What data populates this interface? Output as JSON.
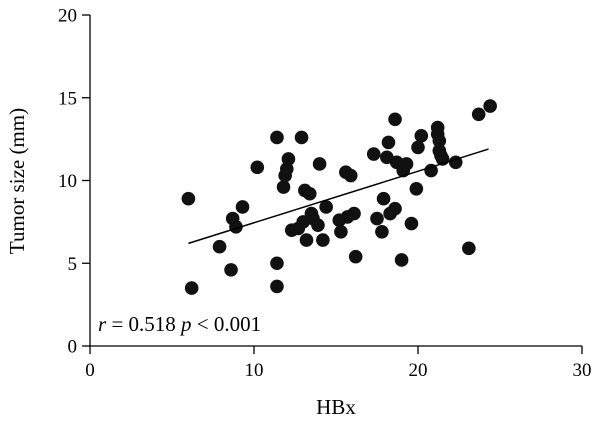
{
  "chart_data": {
    "type": "scatter",
    "xlabel": "HBx",
    "ylabel": "Tumor size (mm)",
    "xlim": [
      0,
      30
    ],
    "ylim": [
      0,
      20
    ],
    "x_ticks": [
      "0",
      "10",
      "20",
      "30"
    ],
    "y_ticks": [
      "0",
      "5",
      "10",
      "15",
      "20"
    ],
    "grid": false,
    "annotation": {
      "r_symbol": "r",
      "r_text": " = 0.518 ",
      "p_symbol": "p",
      "p_text": " < 0.001"
    },
    "trendline": {
      "x": [
        6.0,
        24.3
      ],
      "y": [
        6.2,
        11.9
      ]
    },
    "points": [
      {
        "x": 6.0,
        "y": 8.9
      },
      {
        "x": 6.2,
        "y": 3.5
      },
      {
        "x": 7.9,
        "y": 6.0
      },
      {
        "x": 8.6,
        "y": 4.6
      },
      {
        "x": 8.7,
        "y": 7.7
      },
      {
        "x": 8.9,
        "y": 7.2
      },
      {
        "x": 9.3,
        "y": 8.4
      },
      {
        "x": 10.2,
        "y": 10.8
      },
      {
        "x": 11.4,
        "y": 12.6
      },
      {
        "x": 11.4,
        "y": 5.0
      },
      {
        "x": 11.4,
        "y": 3.6
      },
      {
        "x": 11.8,
        "y": 9.6
      },
      {
        "x": 11.9,
        "y": 10.3
      },
      {
        "x": 12.0,
        "y": 10.7
      },
      {
        "x": 12.1,
        "y": 11.3
      },
      {
        "x": 12.3,
        "y": 7.0
      },
      {
        "x": 12.7,
        "y": 7.1
      },
      {
        "x": 12.9,
        "y": 12.6
      },
      {
        "x": 13.0,
        "y": 7.5
      },
      {
        "x": 13.1,
        "y": 9.4
      },
      {
        "x": 13.2,
        "y": 6.4
      },
      {
        "x": 13.4,
        "y": 9.2
      },
      {
        "x": 13.5,
        "y": 8.0
      },
      {
        "x": 13.6,
        "y": 7.7
      },
      {
        "x": 13.9,
        "y": 7.3
      },
      {
        "x": 14.0,
        "y": 11.0
      },
      {
        "x": 14.2,
        "y": 6.4
      },
      {
        "x": 14.4,
        "y": 8.4
      },
      {
        "x": 15.2,
        "y": 7.6
      },
      {
        "x": 15.3,
        "y": 6.9
      },
      {
        "x": 15.6,
        "y": 10.5
      },
      {
        "x": 15.7,
        "y": 7.8
      },
      {
        "x": 15.9,
        "y": 10.3
      },
      {
        "x": 16.1,
        "y": 8.0
      },
      {
        "x": 16.2,
        "y": 5.4
      },
      {
        "x": 17.3,
        "y": 11.6
      },
      {
        "x": 17.5,
        "y": 7.7
      },
      {
        "x": 17.8,
        "y": 6.9
      },
      {
        "x": 17.9,
        "y": 8.9
      },
      {
        "x": 18.1,
        "y": 11.4
      },
      {
        "x": 18.2,
        "y": 12.3
      },
      {
        "x": 18.3,
        "y": 8.0
      },
      {
        "x": 18.6,
        "y": 13.7
      },
      {
        "x": 18.6,
        "y": 8.3
      },
      {
        "x": 18.7,
        "y": 11.1
      },
      {
        "x": 19.0,
        "y": 5.2
      },
      {
        "x": 19.1,
        "y": 10.6
      },
      {
        "x": 19.3,
        "y": 11.0
      },
      {
        "x": 19.6,
        "y": 7.4
      },
      {
        "x": 19.9,
        "y": 9.5
      },
      {
        "x": 20.0,
        "y": 12.0
      },
      {
        "x": 20.2,
        "y": 12.7
      },
      {
        "x": 20.8,
        "y": 10.6
      },
      {
        "x": 21.2,
        "y": 13.2
      },
      {
        "x": 21.2,
        "y": 12.8
      },
      {
        "x": 21.3,
        "y": 12.4
      },
      {
        "x": 21.3,
        "y": 11.8
      },
      {
        "x": 21.4,
        "y": 11.5
      },
      {
        "x": 21.5,
        "y": 11.3
      },
      {
        "x": 22.3,
        "y": 11.1
      },
      {
        "x": 23.1,
        "y": 5.9
      },
      {
        "x": 23.7,
        "y": 14.0
      },
      {
        "x": 24.4,
        "y": 14.5
      }
    ]
  }
}
